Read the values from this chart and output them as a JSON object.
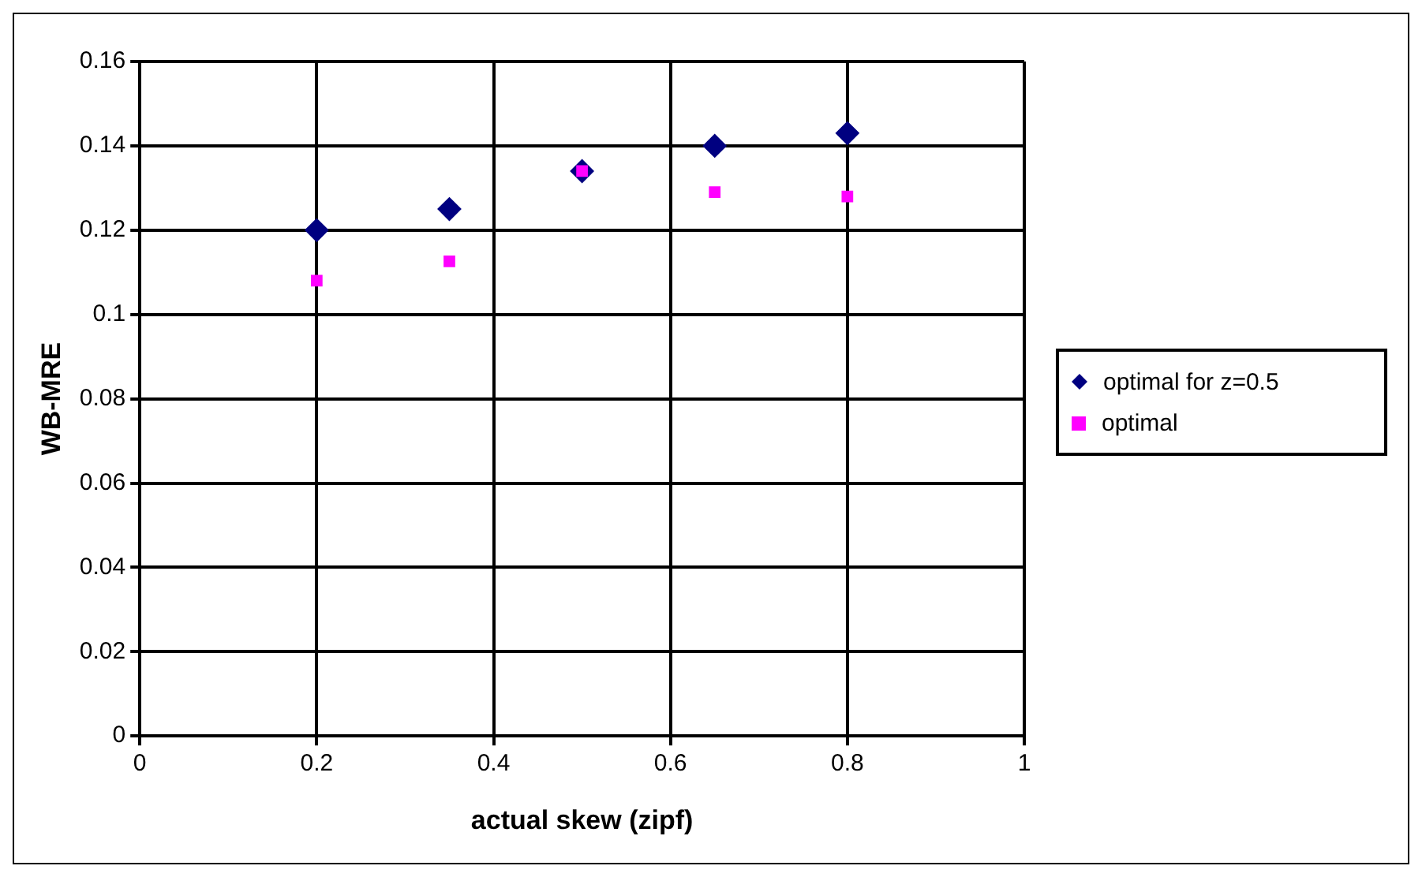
{
  "chart_data": {
    "type": "scatter",
    "xlabel": "actual skew (zipf)",
    "ylabel": "WB-MRE",
    "x": [
      0.2,
      0.35,
      0.5,
      0.65,
      0.8
    ],
    "series": [
      {
        "name": "optimal for z=0.5",
        "color": "#000080",
        "marker": "diamond",
        "values": [
          0.12,
          0.125,
          0.134,
          0.14,
          0.143
        ]
      },
      {
        "name": "optimal",
        "color": "#ff00ff",
        "marker": "square",
        "values": [
          0.108,
          0.1126,
          0.134,
          0.129,
          0.128
        ]
      }
    ],
    "xlim": [
      0,
      1
    ],
    "xticks": [
      0,
      0.2,
      0.4,
      0.6,
      0.8,
      1
    ],
    "ylim": [
      0,
      0.16
    ],
    "yticks": [
      0,
      0.02,
      0.04,
      0.06,
      0.08,
      0.1,
      0.12,
      0.14,
      0.16
    ],
    "grid": true,
    "legend": "right"
  }
}
